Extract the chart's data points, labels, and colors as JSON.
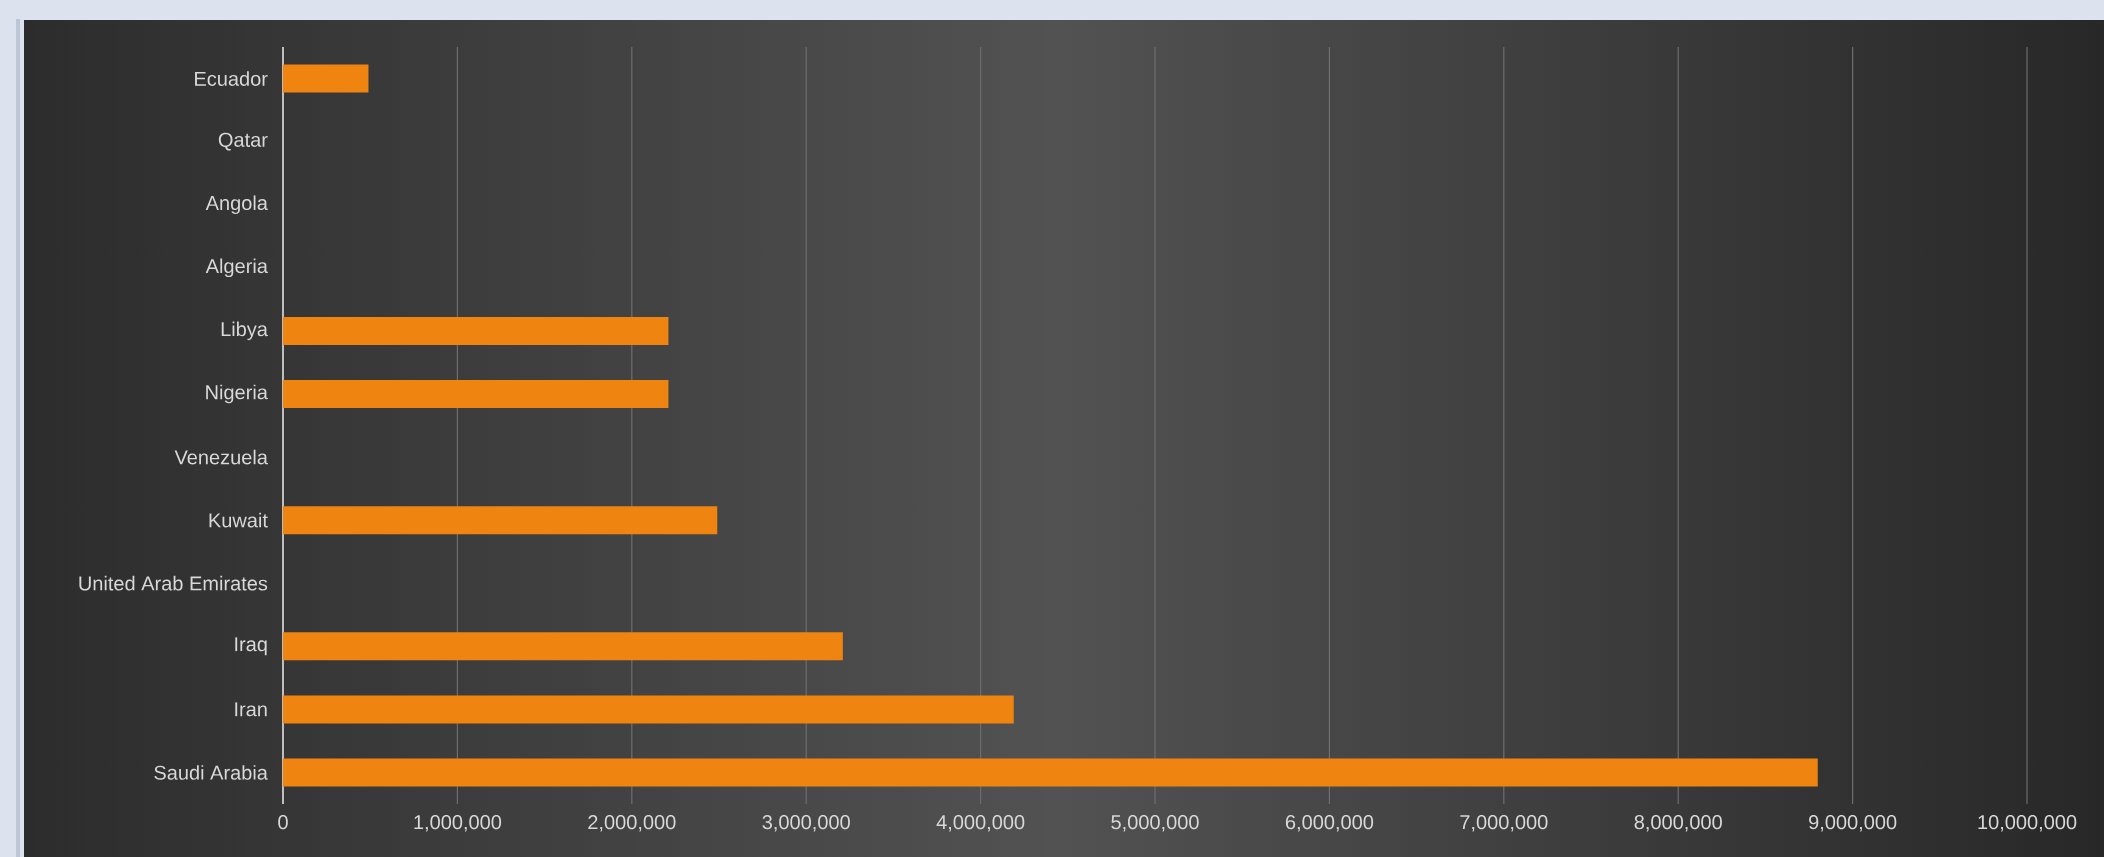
{
  "chart_data": {
    "type": "bar",
    "orientation": "horizontal",
    "categories": [
      "Ecuador",
      "Qatar",
      "Angola",
      "Algeria",
      "Libya",
      "Nigeria",
      "Venezuela",
      "Kuwait",
      "United Arab Emirates",
      "Iraq",
      "Iran",
      "Saudi Arabia"
    ],
    "values": [
      490000,
      0,
      0,
      0,
      2210000,
      2210000,
      0,
      2490000,
      0,
      3210000,
      4190000,
      8800000
    ],
    "color": "#ef8510",
    "xlim": [
      0,
      10000000
    ],
    "xticks": [
      0,
      {
        "value": 1000000,
        "label": "1,000,000"
      },
      {
        "value": 2000000,
        "label": "2,000,000"
      },
      {
        "value": 3000000,
        "label": "3,000,000"
      },
      {
        "value": 4000000,
        "label": "4,000,000"
      },
      {
        "value": 5000000,
        "label": "5,000,000"
      },
      {
        "value": 6000000,
        "label": "6,000,000"
      },
      {
        "value": 7000000,
        "label": "7,000,000"
      },
      {
        "value": 8000000,
        "label": "8,000,000"
      },
      {
        "value": 9000000,
        "label": "9,000,000"
      },
      {
        "value": 10000000,
        "label": "10,000,000"
      }
    ],
    "grid": "x"
  }
}
